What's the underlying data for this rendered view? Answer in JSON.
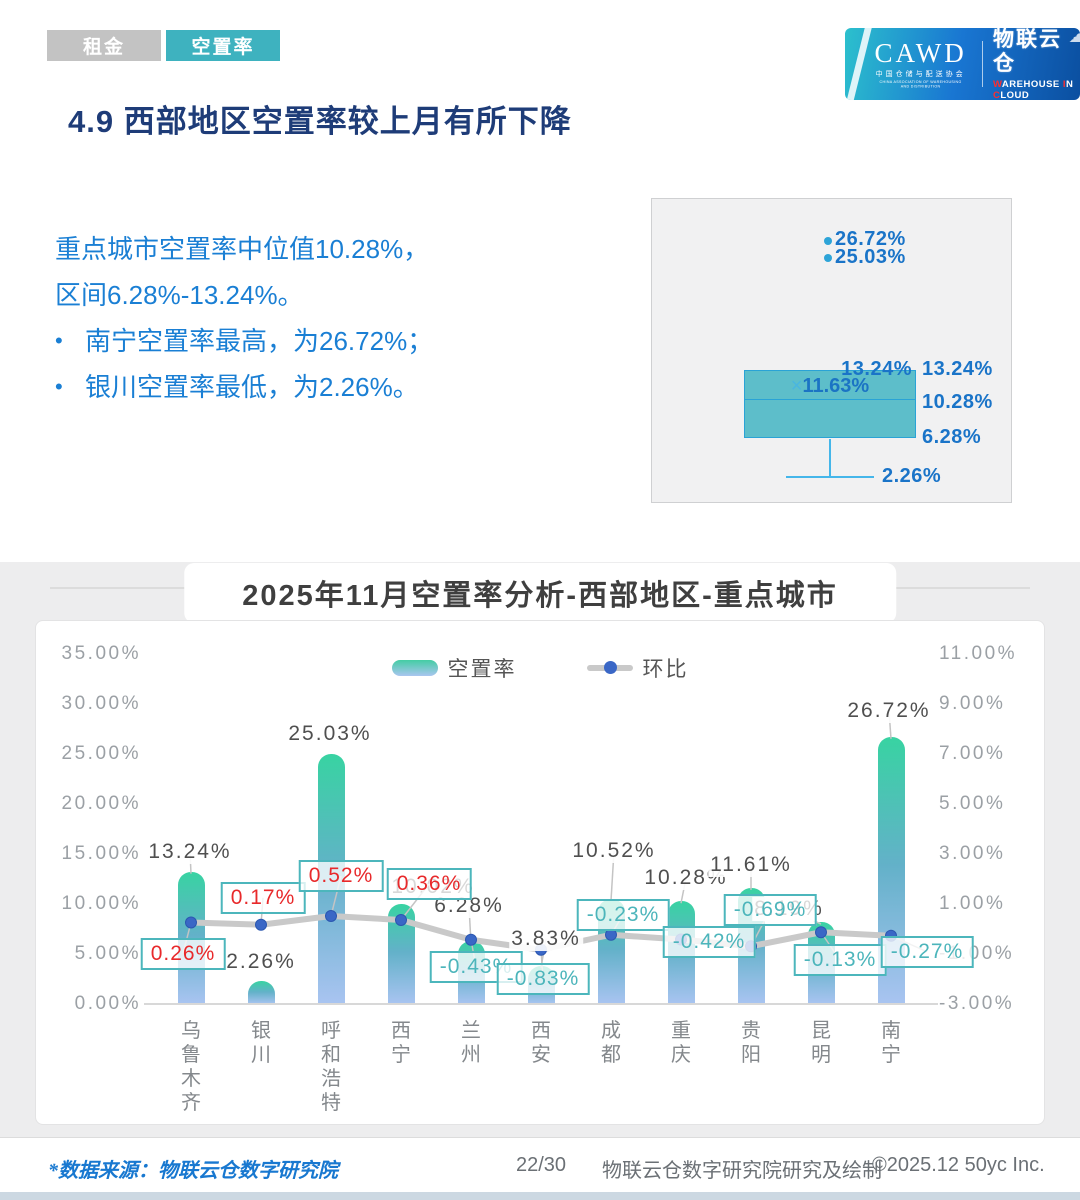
{
  "tabs": [
    {
      "label": "租金",
      "active": false
    },
    {
      "label": "空置率",
      "active": true
    }
  ],
  "logo": {
    "cawd": "CAWD",
    "cawd_cn": "中国仓储与配送协会",
    "cawd_en": "CHINA ASSOCIATION OF WAREHOUSING AND DISTRIBUTION",
    "brand": "物联云仓",
    "brand_sub_parts": [
      "W",
      "AREHOUSE ",
      "I",
      "N ",
      "C",
      "LOUD"
    ],
    "cloud_icon": "☁"
  },
  "page_title": "4.9 西部地区空置率较上月有所下降",
  "summary": {
    "line1": "重点城市空置率中位值10.28%，",
    "line2": "区间6.28%-13.24%。",
    "bullet_char": "•",
    "bullet1": "南宁空置率最高，为26.72%；",
    "bullet2": "银川空置率最低，为2.26%。"
  },
  "box_plot": {
    "outlier_labels": [
      "26.72%",
      "25.03%"
    ],
    "max_label": "13.24%",
    "q3_label": "13.24%",
    "mean_marker": "×",
    "mean_label": "11.63%",
    "median_label": "10.28%",
    "q1_label": "6.28%",
    "min_label": "2.26%"
  },
  "chart_title": "2025年11月空置率分析-西部地区-重点城市",
  "legend": {
    "bar": "空置率",
    "line": "环比"
  },
  "chart_data": {
    "type": "bar+line",
    "title": "2025年11月空置率分析-西部地区-重点城市",
    "categories": [
      "乌鲁木齐",
      "银川",
      "呼和浩特",
      "西宁",
      "兰州",
      "西安",
      "成都",
      "重庆",
      "贵阳",
      "昆明",
      "南宁"
    ],
    "series": [
      {
        "name": "空置率",
        "type": "bar",
        "axis": "left",
        "unit": "%",
        "values": [
          13.24,
          2.26,
          25.03,
          10.02,
          6.28,
          3.83,
          10.52,
          10.28,
          11.61,
          8.19,
          26.72
        ]
      },
      {
        "name": "环比",
        "type": "line",
        "axis": "right",
        "unit": "%",
        "values": [
          0.26,
          0.17,
          0.52,
          0.36,
          -0.43,
          -0.83,
          -0.23,
          -0.42,
          -0.69,
          -0.13,
          -0.27
        ]
      }
    ],
    "bar_labels": [
      "13.24%",
      "2.26%",
      "25.03%",
      "10.02%",
      "6.28%",
      "3.83%",
      "10.52%",
      "10.28%",
      "11.61%",
      "8.19%",
      "26.72%"
    ],
    "delta_labels": [
      "0.26%",
      "0.17%",
      "0.52%",
      "0.36%",
      "-0.43%",
      "-0.83%",
      "-0.23%",
      "-0.42%",
      "-0.69%",
      "-0.13%",
      "-0.27%"
    ],
    "hidden_bar_label_index": 3,
    "left_axis": {
      "ticks": [
        "35.00%",
        "30.00%",
        "25.00%",
        "20.00%",
        "15.00%",
        "10.00%",
        "5.00%",
        "0.00%"
      ],
      "min": 0,
      "max": 35
    },
    "right_axis": {
      "ticks": [
        "11.00%",
        "9.00%",
        "7.00%",
        "5.00%",
        "3.00%",
        "1.00%",
        "-1.00%",
        "-3.00%"
      ],
      "min": -3,
      "max": 11
    },
    "grid": false,
    "legend_position": "top"
  },
  "colors": {
    "accent_teal": "#3eb2bf",
    "bar_gradient_top": "#38d3a2",
    "bar_gradient_bottom": "#a9c4f1",
    "line_gray": "#c9c9c9",
    "dot_blue": "#3a67c6",
    "positive_red": "#e8292b",
    "negative_teal": "#4cb5bb",
    "heading_navy": "#1e3c78",
    "body_blue": "#1a7fd4",
    "boxplot_fill": "#48b6c4",
    "boxplot_label_blue": "#1a74c8"
  },
  "footer": {
    "source": "*数据来源：物联云仓数字研究院",
    "page": "22/30",
    "credit": "物联云仓数字研究院研究及绘制",
    "copyright": "©2025.12 50yc Inc."
  }
}
